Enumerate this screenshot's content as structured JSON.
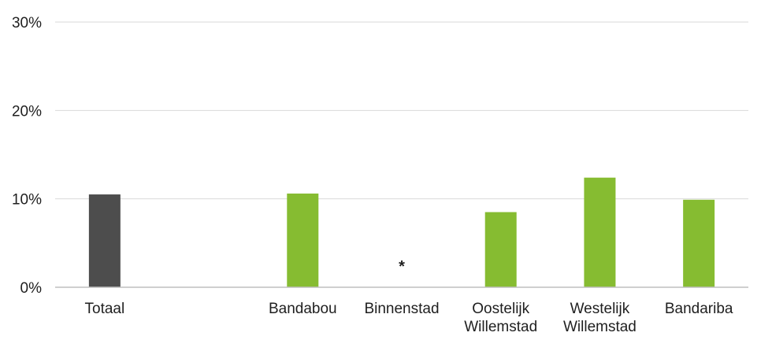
{
  "chart_data": {
    "type": "bar",
    "title": "",
    "xlabel": "",
    "ylabel": "",
    "ylim": [
      0,
      30
    ],
    "y_ticks": [
      "0%",
      "10%",
      "20%",
      "30%"
    ],
    "y_tick_values": [
      0,
      10,
      20,
      30
    ],
    "grid": true,
    "categories": [
      [
        "Totaal"
      ],
      [
        ""
      ],
      [
        "Bandabou"
      ],
      [
        "Binnenstad"
      ],
      [
        "Oostelijk",
        "Willemstad"
      ],
      [
        "Westelijk",
        "Willemstad"
      ],
      [
        "Bandariba"
      ]
    ],
    "values": [
      10.5,
      null,
      10.6,
      null,
      8.5,
      12.4,
      9.9
    ],
    "bar_colors": [
      "#4d4d4d",
      null,
      "#86bc31",
      null,
      "#86bc31",
      "#86bc31",
      "#86bc31"
    ],
    "annotations": [
      {
        "category_index": 3,
        "text": "*",
        "y": 2.5
      }
    ]
  },
  "colors": {
    "total": "#4d4d4d",
    "region": "#86bc31",
    "grid": "#d9d9d9",
    "axis": "#bfbfbf",
    "text": "#1f1f1f"
  }
}
